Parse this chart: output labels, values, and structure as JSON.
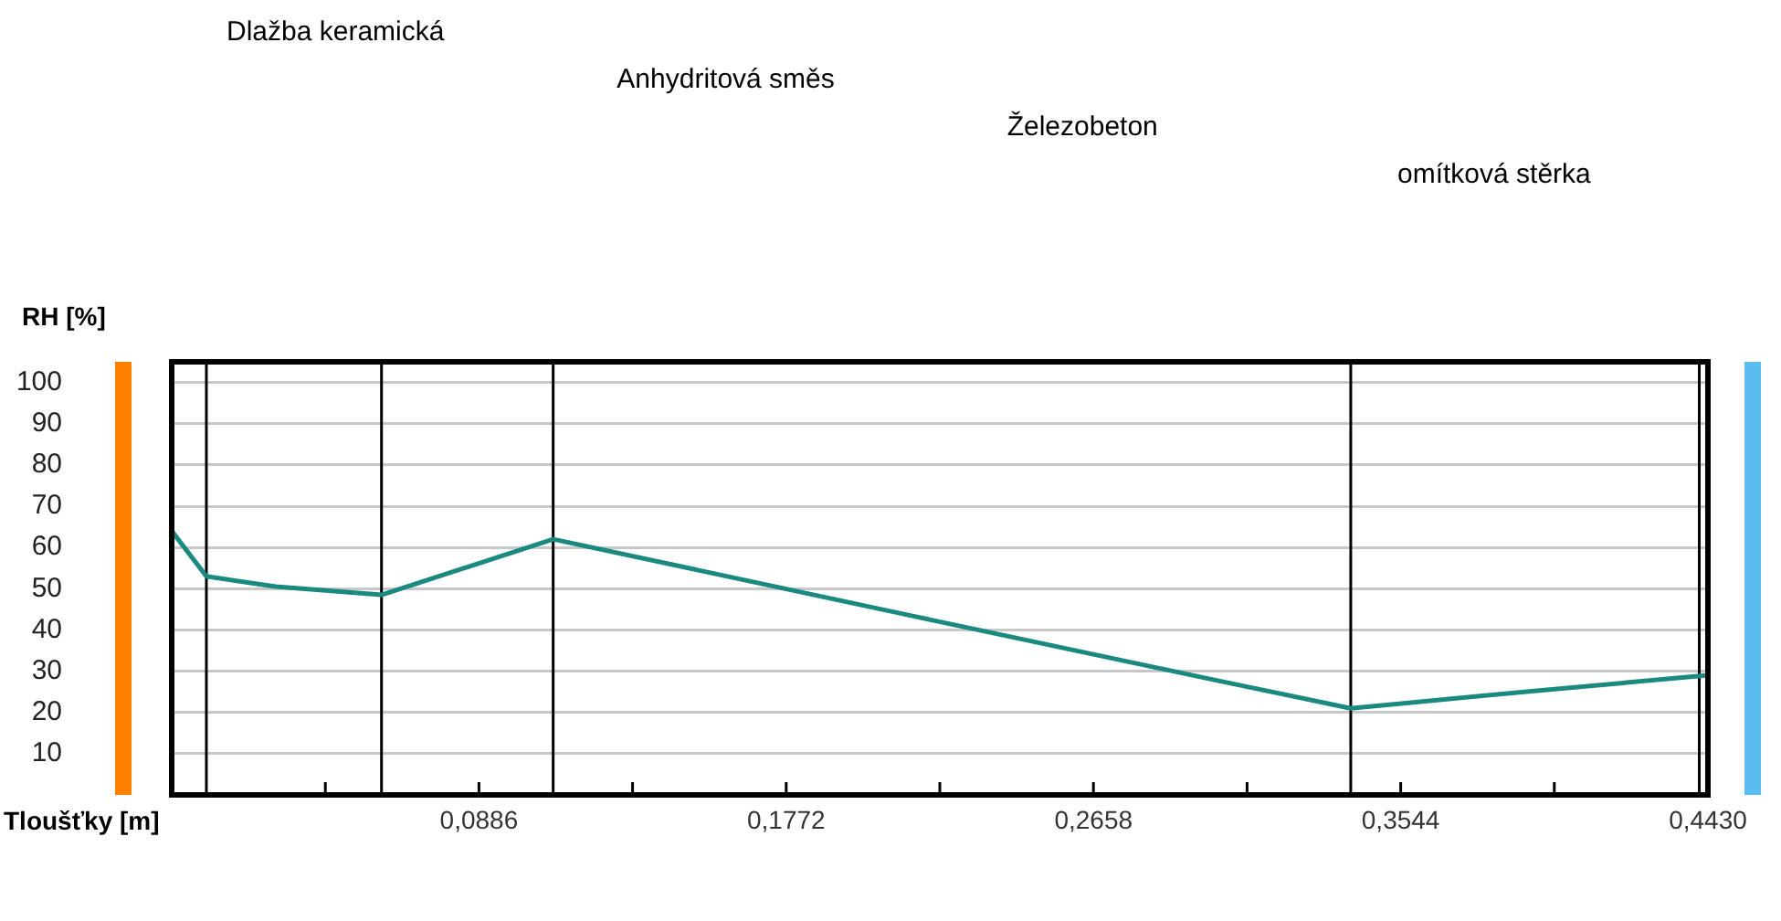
{
  "chart_data": {
    "type": "line",
    "xlabel": "Tloušťky [m]",
    "ylabel": "RH [%]",
    "xlim": [
      0,
      0.443
    ],
    "ylim": [
      0,
      105
    ],
    "xticks": [
      {
        "value": 0.0443,
        "label": null
      },
      {
        "value": 0.0886,
        "label": "0,0886"
      },
      {
        "value": 0.1329,
        "label": null
      },
      {
        "value": 0.1772,
        "label": "0,1772"
      },
      {
        "value": 0.2215,
        "label": null
      },
      {
        "value": 0.2658,
        "label": "0,2658"
      },
      {
        "value": 0.3101,
        "label": null
      },
      {
        "value": 0.3544,
        "label": "0,3544"
      },
      {
        "value": 0.3987,
        "label": null
      },
      {
        "value": 0.443,
        "label": "0,4430"
      }
    ],
    "yticks": [
      10,
      20,
      30,
      40,
      50,
      60,
      70,
      80,
      90,
      100
    ],
    "grid": "y",
    "marker": "none",
    "line_style": "solid",
    "series": [
      {
        "color": "#1a8a80",
        "x": [
          0,
          0.01,
          0.03,
          0.0605,
          0.11,
          0.213,
          0.3,
          0.34,
          0.39,
          0.443
        ],
        "values": [
          64,
          53,
          50.5,
          48.5,
          62,
          43.5,
          28,
          21,
          25,
          29
        ]
      }
    ],
    "ref_lines": [
      {
        "axis": "x",
        "value": 0.01,
        "color": "#000000"
      },
      {
        "axis": "x",
        "value": 0.0605,
        "color": "#000000"
      },
      {
        "axis": "x",
        "value": 0.11,
        "color": "#000000"
      },
      {
        "axis": "x",
        "value": 0.34,
        "color": "#000000"
      },
      {
        "axis": "x",
        "value": 0.4405,
        "color": "#000000"
      }
    ],
    "annotations": [
      "Dlažba keramická",
      "Anhydritová směs",
      "Železobeton",
      "omítková stěrka"
    ]
  }
}
